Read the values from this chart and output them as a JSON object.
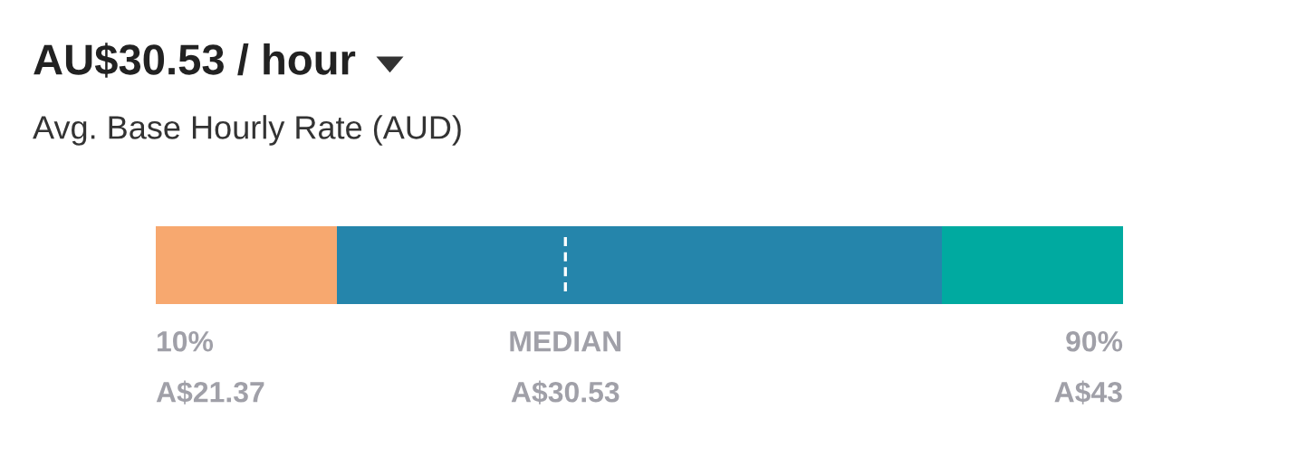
{
  "chart_data": {
    "type": "other",
    "title": "AU$30.53 / hour",
    "subtitle": "Avg. Base Hourly Rate (AUD)",
    "categories": [
      "10%",
      "MEDIAN",
      "90%"
    ],
    "values": [
      21.37,
      30.53,
      43
    ],
    "value_labels": [
      "A$21.37",
      "A$30.53",
      "A$43"
    ],
    "colors": [
      "#f7a86f",
      "#2585ab",
      "#00aaa0"
    ]
  }
}
